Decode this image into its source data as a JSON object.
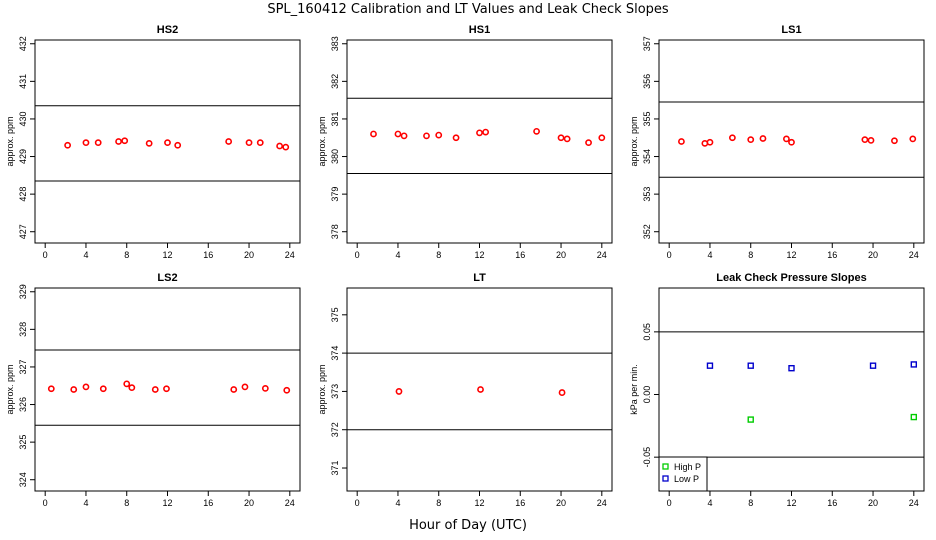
{
  "title": "SPL_160412  Calibration and LT Values and Leak Check Slopes",
  "x_axis_label": "Hour of Day (UTC)",
  "colors": {
    "calibration_points": "#ff0000",
    "high_p": "#00cc00",
    "low_p": "#0000cc",
    "frame": "#000000"
  },
  "chart_data": [
    {
      "type": "scatter",
      "title": "HS2",
      "ylabel": "approx. ppm",
      "xlim": [
        -1,
        25
      ],
      "ylim": [
        426.7,
        432.1
      ],
      "xticks": [
        "0",
        "4",
        "8",
        "12",
        "16",
        "20",
        "24"
      ],
      "yticks": [
        "427",
        "428",
        "429",
        "430",
        "431",
        "432"
      ],
      "ref_lines": [
        430.35,
        428.35
      ],
      "series": [
        {
          "x": [
            2.2,
            4.0,
            5.2,
            7.2,
            7.8,
            10.2,
            12.0,
            13.0,
            18.0,
            20.0,
            21.1,
            23.0,
            23.6
          ],
          "y": [
            429.3,
            429.37,
            429.37,
            429.4,
            429.42,
            429.35,
            429.37,
            429.3,
            429.4,
            429.37,
            429.37,
            429.28,
            429.25
          ]
        }
      ]
    },
    {
      "type": "scatter",
      "title": "HS1",
      "ylabel": "approx. ppm",
      "xlim": [
        -1,
        25
      ],
      "ylim": [
        377.7,
        383.1
      ],
      "xticks": [
        "0",
        "4",
        "8",
        "12",
        "16",
        "20",
        "24"
      ],
      "yticks": [
        "378",
        "379",
        "380",
        "381",
        "382",
        "383"
      ],
      "ref_lines": [
        381.55,
        379.55
      ],
      "series": [
        {
          "x": [
            1.6,
            4.0,
            4.6,
            6.8,
            8.0,
            9.7,
            12.0,
            12.6,
            17.6,
            20.0,
            20.6,
            22.7,
            24.0
          ],
          "y": [
            380.6,
            380.6,
            380.55,
            380.55,
            380.57,
            380.5,
            380.63,
            380.65,
            380.67,
            380.5,
            380.47,
            380.37,
            380.5
          ]
        }
      ]
    },
    {
      "type": "scatter",
      "title": "LS1",
      "ylabel": "approx. ppm",
      "xlim": [
        -1,
        25
      ],
      "ylim": [
        351.7,
        357.1
      ],
      "xticks": [
        "0",
        "4",
        "8",
        "12",
        "16",
        "20",
        "24"
      ],
      "yticks": [
        "352",
        "353",
        "354",
        "355",
        "356",
        "357"
      ],
      "ref_lines": [
        355.45,
        353.45
      ],
      "series": [
        {
          "x": [
            1.2,
            3.5,
            4.0,
            6.2,
            8.0,
            9.2,
            11.5,
            12.0,
            19.2,
            19.8,
            22.1,
            23.9
          ],
          "y": [
            354.4,
            354.35,
            354.38,
            354.5,
            354.45,
            354.48,
            354.47,
            354.38,
            354.45,
            354.43,
            354.42,
            354.47
          ]
        }
      ]
    },
    {
      "type": "scatter",
      "title": "LS2",
      "ylabel": "approx. ppm",
      "xlim": [
        -1,
        25
      ],
      "ylim": [
        323.7,
        329.1
      ],
      "xticks": [
        "0",
        "4",
        "8",
        "12",
        "16",
        "20",
        "24"
      ],
      "yticks": [
        "324",
        "325",
        "326",
        "327",
        "328",
        "329"
      ],
      "ref_lines": [
        327.45,
        325.45
      ],
      "series": [
        {
          "x": [
            0.6,
            2.8,
            4.0,
            5.7,
            8.0,
            8.5,
            10.8,
            11.9,
            18.5,
            19.6,
            21.6,
            23.7
          ],
          "y": [
            326.42,
            326.4,
            326.47,
            326.42,
            326.55,
            326.45,
            326.4,
            326.42,
            326.4,
            326.47,
            326.43,
            326.38
          ]
        }
      ]
    },
    {
      "type": "scatter",
      "title": "LT",
      "ylabel": "approx. ppm",
      "xlim": [
        -1,
        25
      ],
      "ylim": [
        370.4,
        375.7
      ],
      "xticks": [
        "0",
        "4",
        "8",
        "12",
        "16",
        "20",
        "24"
      ],
      "yticks": [
        "371",
        "372",
        "373",
        "374",
        "375"
      ],
      "ref_lines": [
        374.0,
        372.0
      ],
      "series": [
        {
          "x": [
            4.1,
            12.1,
            20.1
          ],
          "y": [
            373.0,
            373.05,
            372.97
          ]
        }
      ]
    },
    {
      "type": "scatter",
      "title": "Leak Check Pressure Slopes",
      "ylabel": "kPa per min.",
      "xlim": [
        -1,
        25
      ],
      "ylim": [
        -0.077,
        0.085
      ],
      "xticks": [
        "0",
        "4",
        "8",
        "12",
        "16",
        "20",
        "24"
      ],
      "yticks": [
        "-0.05",
        "0.00",
        "0.05"
      ],
      "ref_lines": [
        0.05,
        -0.05
      ],
      "legend": {
        "position": "bottom-left",
        "entries": [
          "High P",
          "Low P"
        ]
      },
      "series": [
        {
          "name": "High P",
          "color": "#00cc00",
          "x": [
            8.0,
            24.0
          ],
          "y": [
            -0.02,
            -0.018
          ]
        },
        {
          "name": "Low P",
          "color": "#0000cc",
          "x": [
            4.0,
            8.0,
            12.0,
            20.0,
            24.0
          ],
          "y": [
            0.023,
            0.023,
            0.021,
            0.023,
            0.024
          ]
        }
      ]
    }
  ]
}
